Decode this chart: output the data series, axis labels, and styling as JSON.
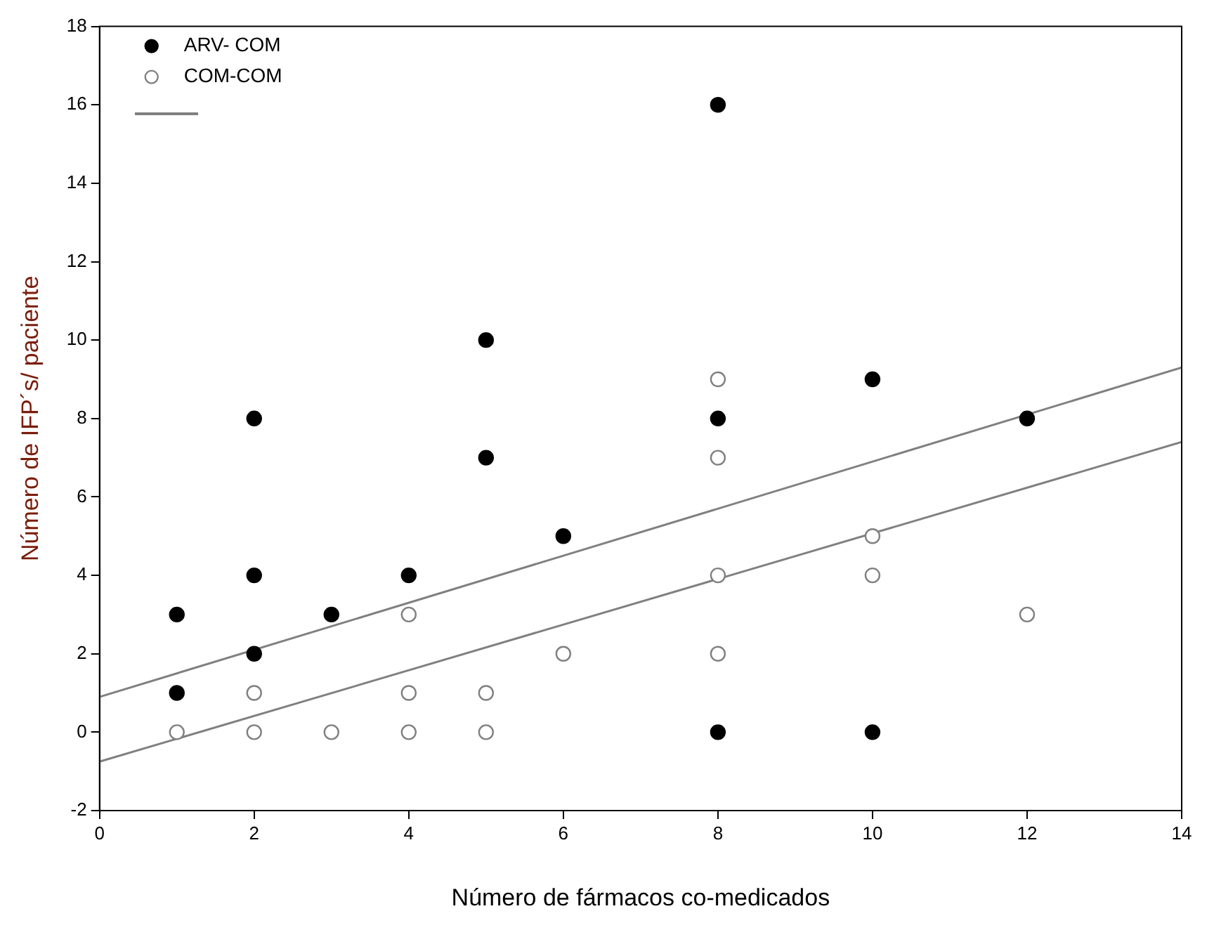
{
  "chart_data": {
    "type": "scatter",
    "xlabel": "Número de fármacos co-medicados",
    "ylabel": "Número de IFP´s/ paciente",
    "xlim": [
      0,
      14
    ],
    "xticks": [
      0,
      2,
      4,
      6,
      8,
      10,
      12,
      14
    ],
    "ylim": [
      -2,
      18
    ],
    "yticks": [
      -2,
      0,
      2,
      4,
      6,
      8,
      10,
      12,
      14,
      16,
      18
    ],
    "grid": false,
    "legend": "top left",
    "series": [
      {
        "name": "ARV- COM",
        "marker": "circle",
        "color": "#000000",
        "x": [
          1,
          1,
          2,
          2,
          2,
          3,
          4,
          5,
          5,
          6,
          8,
          8,
          8,
          10,
          10,
          12
        ],
        "values": [
          3,
          1,
          8,
          4,
          2,
          3,
          4,
          10,
          7,
          5,
          16,
          8,
          0,
          9,
          0,
          8
        ]
      },
      {
        "name": "COM-COM",
        "marker": "circle",
        "color": "#808080",
        "x": [
          1,
          2,
          2,
          3,
          4,
          4,
          4,
          5,
          5,
          6,
          8,
          8,
          8,
          8,
          10,
          10,
          12
        ],
        "values": [
          0,
          1,
          0,
          0,
          3,
          1,
          0,
          1,
          0,
          2,
          9,
          7,
          4,
          2,
          5,
          4,
          3
        ]
      },
      {
        "type": "line",
        "color": "#808080",
        "x": [
          0,
          14
        ],
        "values": [
          0.9,
          9.3
        ]
      },
      {
        "type": "line",
        "color": "#808080",
        "x": [
          0,
          14
        ],
        "values": [
          -0.75,
          7.4
        ]
      }
    ]
  }
}
